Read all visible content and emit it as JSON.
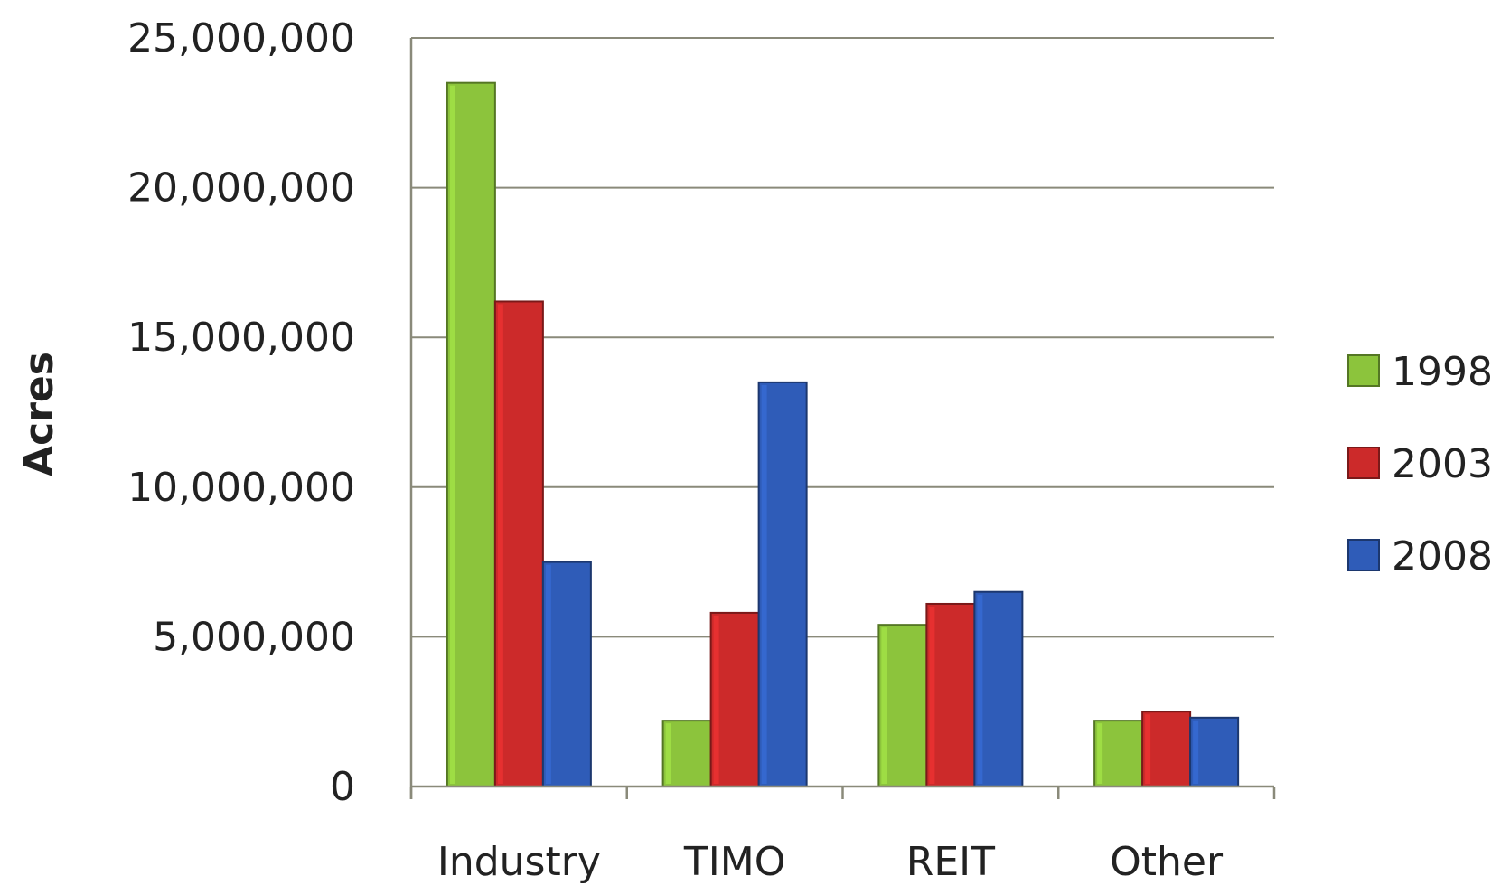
{
  "chart_data": {
    "type": "bar",
    "title": "",
    "xlabel": "",
    "ylabel": "Acres",
    "categories": [
      "Industry",
      "TIMO",
      "REIT",
      "Other"
    ],
    "series": [
      {
        "name": "1998",
        "color": "#8cc43c",
        "values": [
          23500000,
          2200000,
          5400000,
          2200000
        ]
      },
      {
        "name": "2003",
        "color": "#cc2a2a",
        "values": [
          16200000,
          5800000,
          6100000,
          2500000
        ]
      },
      {
        "name": "2008",
        "color": "#2f5cb8",
        "values": [
          7500000,
          13500000,
          6500000,
          2300000
        ]
      }
    ],
    "ylim": [
      0,
      25000000
    ],
    "yticks": [
      0,
      5000000,
      10000000,
      15000000,
      20000000,
      25000000
    ],
    "ytick_labels": [
      "0",
      "5,000,000",
      "10,000,000",
      "15,000,000",
      "20,000,000",
      "25,000,000"
    ],
    "grid": true,
    "legend": "right"
  }
}
